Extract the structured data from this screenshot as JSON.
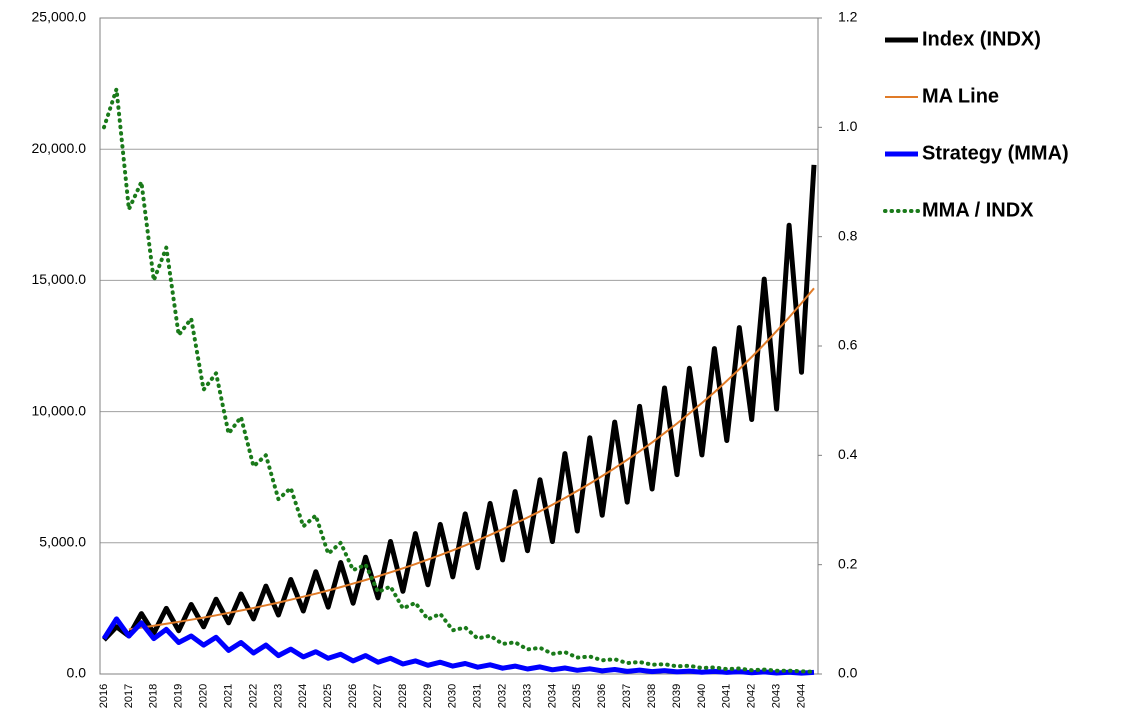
{
  "chart_data": {
    "type": "line",
    "x": [
      "2016",
      null,
      "2017",
      null,
      "2018",
      null,
      "2019",
      null,
      "2020",
      null,
      "2021",
      null,
      "2022",
      null,
      "2023",
      null,
      "2024",
      null,
      "2025",
      null,
      "2026",
      null,
      "2027",
      null,
      "2028",
      null,
      "2029",
      null,
      "2030",
      null,
      "2031",
      null,
      "2032",
      null,
      "2033",
      null,
      "2034",
      null,
      "2035",
      null,
      "2036",
      null,
      "2037",
      null,
      "2038",
      null,
      "2039",
      null,
      "2040",
      null,
      "2041",
      null,
      "2042",
      null,
      "2043",
      null,
      "2044",
      null
    ],
    "series": [
      {
        "name": "Index (INDX)",
        "color": "#000000",
        "width": 5,
        "values": [
          1300,
          1800,
          1450,
          2300,
          1550,
          2500,
          1650,
          2650,
          1800,
          2850,
          1950,
          3050,
          2100,
          3350,
          2250,
          3600,
          2400,
          3900,
          2550,
          4250,
          2700,
          4450,
          2900,
          5050,
          3150,
          5350,
          3400,
          5700,
          3700,
          6100,
          4050,
          6500,
          4350,
          6950,
          4700,
          7400,
          5050,
          8400,
          5450,
          9000,
          6050,
          9600,
          6550,
          10200,
          7050,
          10900,
          7600,
          11650,
          8350,
          12400,
          8900,
          13200,
          9700,
          15050,
          10100,
          17100,
          11500,
          19400
        ]
      },
      {
        "name": "MA Line",
        "color": "#e07b28",
        "width": 2,
        "values": [
          null,
          null,
          1700,
          1768,
          1839,
          1912,
          1989,
          2068,
          2151,
          2237,
          2327,
          2420,
          2516,
          2617,
          2722,
          2831,
          2944,
          3062,
          3184,
          3311,
          3444,
          3582,
          3725,
          3874,
          4029,
          4190,
          4358,
          4532,
          4713,
          4902,
          5098,
          5302,
          5514,
          5734,
          5964,
          6202,
          6450,
          6708,
          6977,
          7256,
          7546,
          7848,
          8162,
          8488,
          8828,
          9181,
          9548,
          9930,
          10327,
          10741,
          11170,
          11617,
          12082,
          12565,
          13068,
          13590,
          14134,
          14700
        ]
      },
      {
        "name": "Strategy (MMA)",
        "color": "#0000ff",
        "width": 5,
        "values": [
          1350,
          2100,
          1450,
          1950,
          1350,
          1700,
          1200,
          1450,
          1100,
          1400,
          900,
          1200,
          800,
          1100,
          700,
          950,
          650,
          850,
          600,
          750,
          500,
          700,
          450,
          600,
          380,
          500,
          330,
          450,
          300,
          400,
          260,
          350,
          220,
          300,
          190,
          270,
          160,
          230,
          140,
          200,
          120,
          170,
          100,
          150,
          90,
          130,
          80,
          110,
          70,
          100,
          60,
          90,
          50,
          80,
          40,
          70,
          35,
          60
        ]
      },
      {
        "name": "MMA / INDX",
        "color": "#1a7a1a",
        "width": 4,
        "dotted": true,
        "axis": "y2",
        "values": [
          1.0,
          1.07,
          0.85,
          0.9,
          0.72,
          0.78,
          0.62,
          0.65,
          0.52,
          0.55,
          0.44,
          0.47,
          0.38,
          0.4,
          0.32,
          0.34,
          0.27,
          0.29,
          0.22,
          0.24,
          0.19,
          0.2,
          0.15,
          0.16,
          0.12,
          0.13,
          0.1,
          0.11,
          0.08,
          0.085,
          0.065,
          0.07,
          0.055,
          0.058,
          0.045,
          0.048,
          0.037,
          0.04,
          0.03,
          0.032,
          0.025,
          0.027,
          0.02,
          0.022,
          0.017,
          0.018,
          0.014,
          0.015,
          0.011,
          0.012,
          0.009,
          0.01,
          0.007,
          0.008,
          0.006,
          0.006,
          0.005,
          0.004
        ]
      }
    ],
    "ylim": [
      0,
      25000
    ],
    "yticks": [
      {
        "value": 0,
        "label": "0.0"
      },
      {
        "value": 5000,
        "label": "5,000.0"
      },
      {
        "value": 10000,
        "label": "10,000.0"
      },
      {
        "value": 15000,
        "label": "15,000.0"
      },
      {
        "value": 20000,
        "label": "20,000.0"
      },
      {
        "value": 25000,
        "label": "25,000.0"
      }
    ],
    "y2lim": [
      0,
      1.2
    ],
    "y2ticks": [
      {
        "value": 0,
        "label": "0.0"
      },
      0.2,
      0.4,
      0.6,
      0.8,
      {
        "value": 1.0,
        "label": "1.0"
      },
      1.2
    ],
    "grid": true,
    "legend": "right"
  }
}
